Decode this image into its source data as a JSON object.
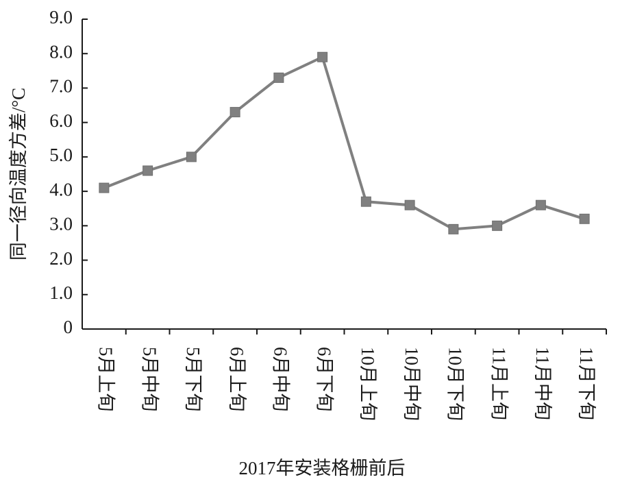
{
  "chart_data": {
    "type": "line",
    "x_label": "2017年安装格栅前后",
    "y_label": "同一径向温度方差/°C",
    "categories": [
      "5月上旬",
      "5月中旬",
      "5月下旬",
      "6月上旬",
      "6月中旬",
      "6月下旬",
      "10月上旬",
      "10月中旬",
      "10月下旬",
      "11月上旬",
      "11月中旬",
      "11月下旬"
    ],
    "series": [
      {
        "color": "#808080",
        "values": [
          4.1,
          4.6,
          5.0,
          6.3,
          7.3,
          7.9,
          3.7,
          3.6,
          2.9,
          3.0,
          3.6,
          3.2
        ]
      }
    ],
    "ylim": [
      0,
      9
    ],
    "yticks": [
      0,
      {
        "value": 1,
        "label": "1.0"
      },
      {
        "value": 2,
        "label": "2.0"
      },
      {
        "value": 3,
        "label": "3.0"
      },
      {
        "value": 4,
        "label": "4.0"
      },
      {
        "value": 5,
        "label": "5.0"
      },
      {
        "value": 6,
        "label": "6.0"
      },
      {
        "value": 7,
        "label": "7.0"
      },
      {
        "value": 8,
        "label": "8.0"
      },
      {
        "value": 9,
        "label": "9.0"
      }
    ],
    "grid": false
  }
}
